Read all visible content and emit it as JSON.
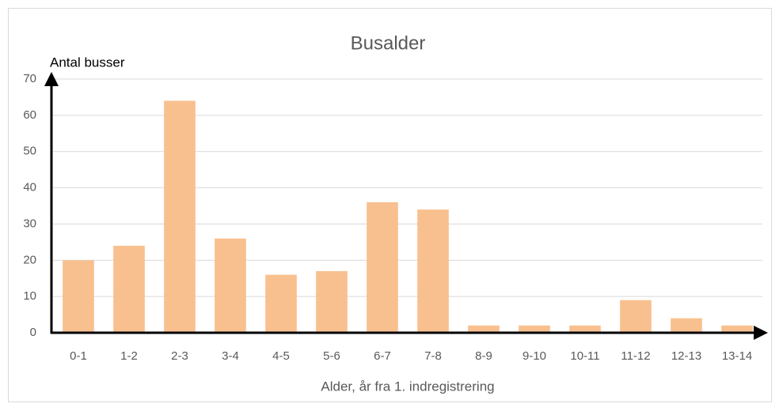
{
  "chart_data": {
    "type": "bar",
    "title": "Busalder",
    "y_label": "Antal busser",
    "x_label": "Alder, år fra 1. indregistrering",
    "categories": [
      "0-1",
      "1-2",
      "2-3",
      "3-4",
      "4-5",
      "5-6",
      "6-7",
      "7-8",
      "8-9",
      "9-10",
      "10-11",
      "11-12",
      "12-13",
      "13-14"
    ],
    "values": [
      20,
      24,
      64,
      26,
      16,
      17,
      36,
      34,
      2,
      2,
      2,
      9,
      4,
      2
    ],
    "color": "#f9c08f",
    "ylim": [
      0,
      70
    ],
    "yticks": [
      0,
      10,
      20,
      30,
      40,
      50,
      60,
      70
    ],
    "grid": true
  }
}
